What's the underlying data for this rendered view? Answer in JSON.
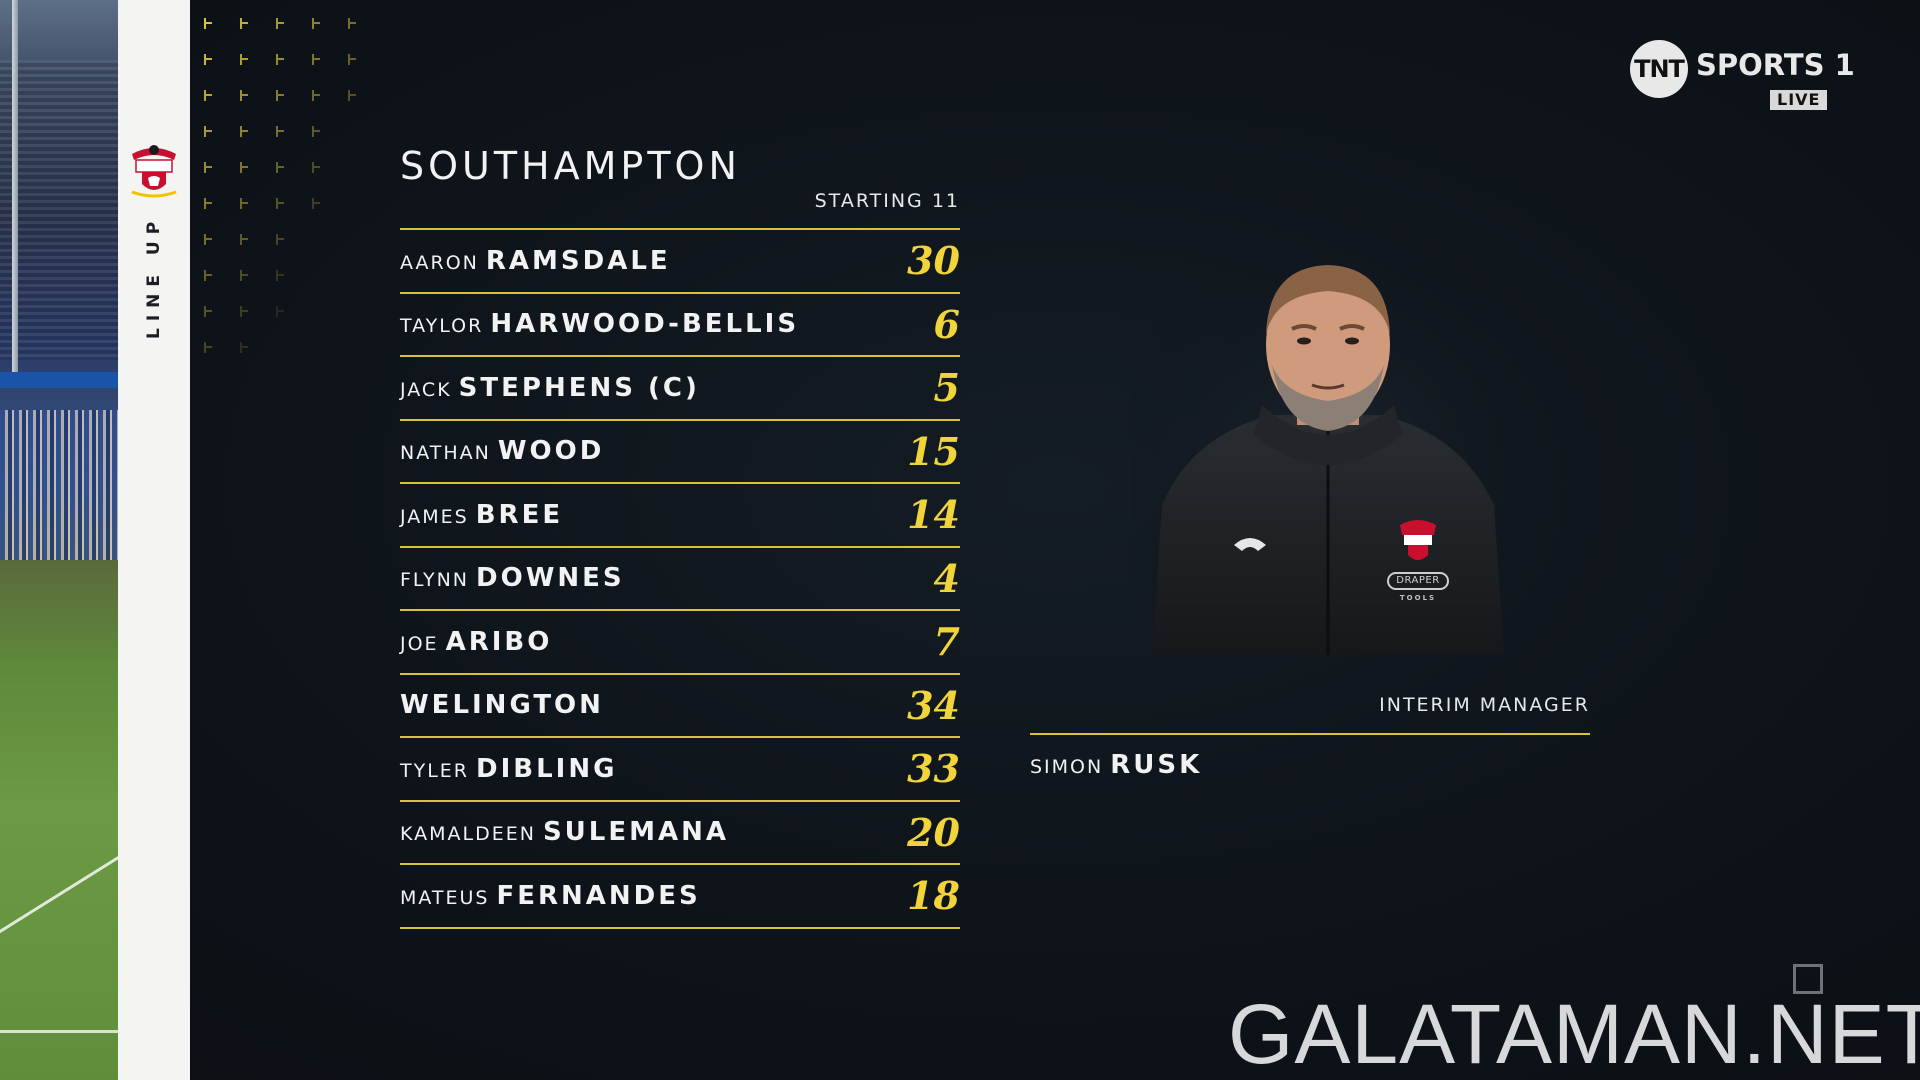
{
  "sidebar": {
    "label": "LINE UP",
    "crest_icon": "southampton-crest-icon"
  },
  "broadcaster": {
    "logo_text": "TNT",
    "channel": "SPORTS 1",
    "live": "LIVE"
  },
  "team": {
    "name": "SOUTHAMPTON",
    "subtitle": "STARTING 11"
  },
  "players": [
    {
      "first": "AARON",
      "last": "RAMSDALE",
      "number": "30"
    },
    {
      "first": "TAYLOR",
      "last": "HARWOOD-BELLIS",
      "number": "6"
    },
    {
      "first": "JACK",
      "last": "STEPHENS (c)",
      "number": "5"
    },
    {
      "first": "NATHAN",
      "last": "WOOD",
      "number": "15"
    },
    {
      "first": "JAMES",
      "last": "BREE",
      "number": "14"
    },
    {
      "first": "FLYNN",
      "last": "DOWNES",
      "number": "4"
    },
    {
      "first": "JOE",
      "last": "ARIBO",
      "number": "7"
    },
    {
      "first": "",
      "last": "WELINGTON",
      "number": "34"
    },
    {
      "first": "TYLER",
      "last": "DIBLING",
      "number": "33"
    },
    {
      "first": "KAMALDEEN",
      "last": "SULEMANA",
      "number": "20"
    },
    {
      "first": "MATEUS",
      "last": "FERNANDES",
      "number": "18"
    }
  ],
  "manager": {
    "role": "INTERIM MANAGER",
    "first": "SIMON",
    "last": "RUSK",
    "kit_sponsor": "DRAPER",
    "kit_sponsor_sub": "TOOLS"
  },
  "watermark": "GALATAMAN.NET",
  "colors": {
    "accent": "#d7c23a",
    "number": "#f0d43a",
    "background": "#0d1116"
  }
}
